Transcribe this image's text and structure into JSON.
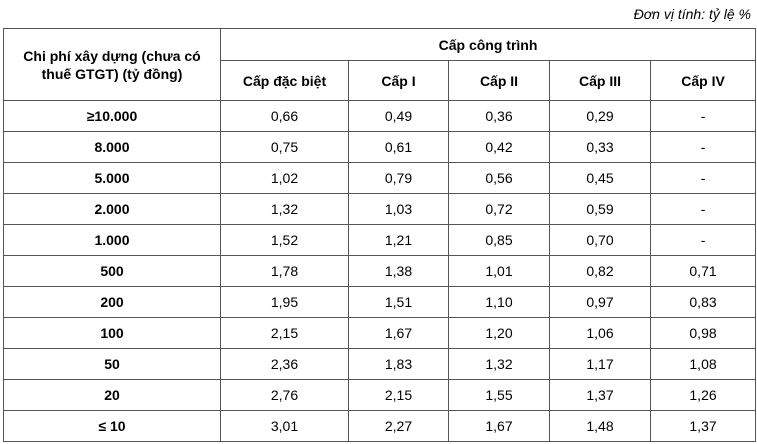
{
  "unit_note": "Đơn vị tính: tỷ lệ %",
  "table": {
    "corner_header": "Chi phí xây dựng (chưa có thuế GTGT) (tỷ đồng)",
    "group_header": "Cấp công trình",
    "columns": [
      "Cấp đặc biệt",
      "Cấp I",
      "Cấp II",
      "Cấp III",
      "Cấp IV"
    ],
    "rows": [
      [
        "≥10.000",
        "0,66",
        "0,49",
        "0,36",
        "0,29",
        "-"
      ],
      [
        "8.000",
        "0,75",
        "0,61",
        "0,42",
        "0,33",
        "-"
      ],
      [
        "5.000",
        "1,02",
        "0,79",
        "0,56",
        "0,45",
        "-"
      ],
      [
        "2.000",
        "1,32",
        "1,03",
        "0,72",
        "0,59",
        "-"
      ],
      [
        "1.000",
        "1,52",
        "1,21",
        "0,85",
        "0,70",
        "-"
      ],
      [
        "500",
        "1,78",
        "1,38",
        "1,01",
        "0,82",
        "0,71"
      ],
      [
        "200",
        "1,95",
        "1,51",
        "1,10",
        "0,97",
        "0,83"
      ],
      [
        "100",
        "2,15",
        "1,67",
        "1,20",
        "1,06",
        "0,98"
      ],
      [
        "50",
        "2,36",
        "1,83",
        "1,32",
        "1,17",
        "1,08"
      ],
      [
        "20",
        "2,76",
        "2,15",
        "1,55",
        "1,37",
        "1,26"
      ],
      [
        "≤ 10",
        "3,01",
        "2,27",
        "1,67",
        "1,48",
        "1,37"
      ]
    ]
  }
}
